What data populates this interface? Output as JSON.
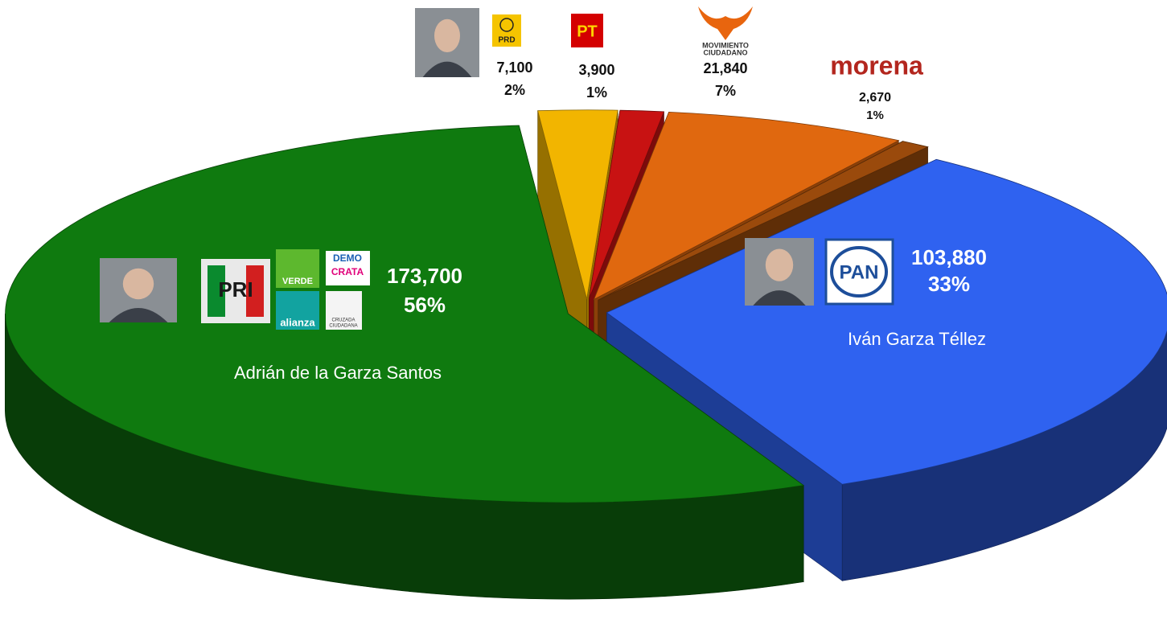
{
  "chart_data": {
    "type": "pie",
    "categories": [
      null,
      null,
      null,
      null,
      "Iván Garza Téllez",
      "Adrián de la Garza Santos"
    ],
    "values": [
      7100,
      3900,
      21840,
      2670,
      103880,
      173700
    ],
    "value_labels": [
      "7,100",
      "3,900",
      "21,840",
      "2,670",
      "103,880",
      "173,700"
    ],
    "percentages": [
      2,
      1,
      7,
      1,
      33,
      56
    ],
    "percentage_labels": [
      "2%",
      "1%",
      "7%",
      "1%",
      "33%",
      "56%"
    ],
    "colors": [
      "#f2b500",
      "#c81212",
      "#e0680f",
      "#9a4a0c",
      "#2f62f0",
      "#0f7a0f"
    ],
    "logos": [
      [
        "PRD"
      ],
      [
        "PT"
      ],
      [
        "MOVIMIENTO",
        "CIUDADANO"
      ],
      [
        "morena"
      ],
      [
        "PAN"
      ],
      [
        "PRI",
        "VERDE",
        "alianza",
        "DEMO",
        "CRATA",
        "CRUZADA",
        "CIUDADANA"
      ]
    ]
  }
}
